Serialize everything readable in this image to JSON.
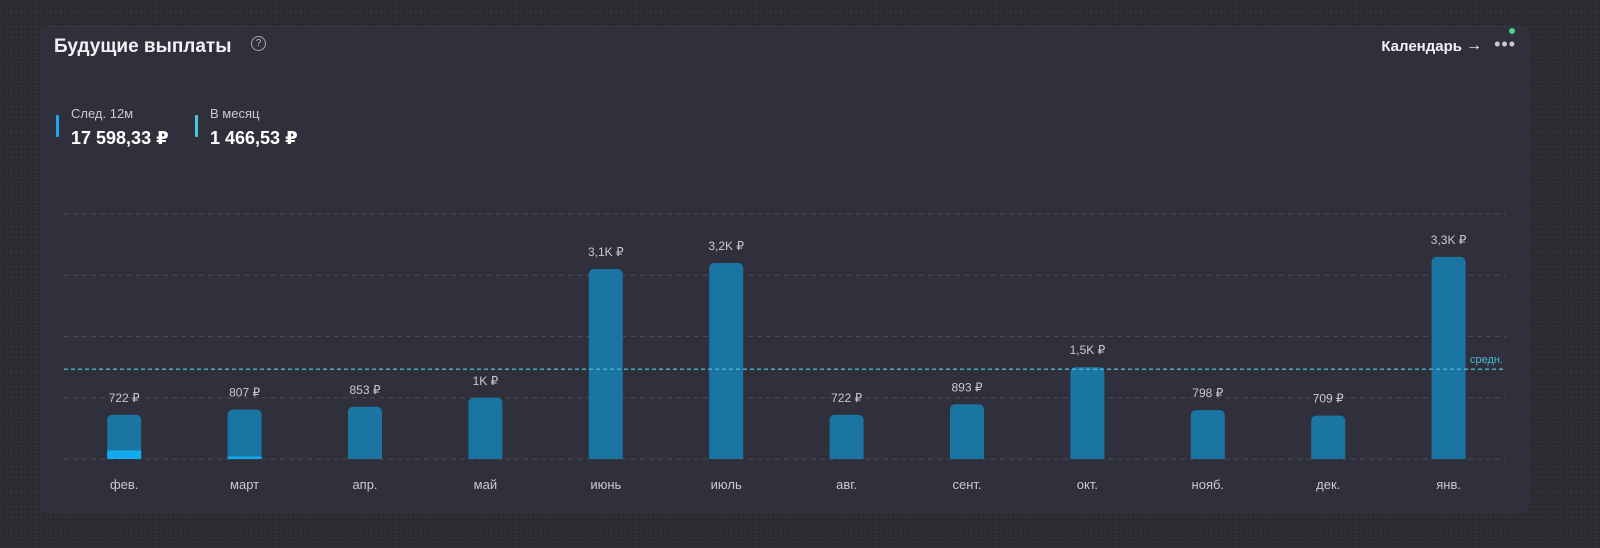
{
  "widget": {
    "title": "Будущие выплаты",
    "help_icon": "?",
    "calendar_link": "Календарь",
    "arrow_icon": "→",
    "more_icon": "•••"
  },
  "stats": [
    {
      "label": "След. 12м",
      "value": "17 598,33 ₽",
      "color": "#1fa9f2"
    },
    {
      "label": "В месяц",
      "value": "1 466,53 ₽",
      "color": "#4fc3dc"
    }
  ],
  "colors": {
    "bar": "#1b75a3",
    "bar_highlight": "#14aaf0",
    "average_line": "#4cb8d8",
    "grid": "#4a4a55",
    "status_dot": "#4cd08a"
  },
  "chart_data": {
    "type": "bar",
    "categories": [
      "фев.",
      "март",
      "апр.",
      "май",
      "июнь",
      "июль",
      "авг.",
      "сент.",
      "окт.",
      "нояб.",
      "дек.",
      "янв."
    ],
    "values": [
      722,
      807,
      853,
      1000,
      3100,
      3200,
      722,
      893,
      1500,
      798,
      709,
      3300
    ],
    "highlight_values": [
      140,
      40,
      0,
      0,
      0,
      0,
      0,
      0,
      0,
      0,
      0,
      0
    ],
    "value_labels": [
      "722 ₽",
      "807 ₽",
      "853 ₽",
      "1K ₽",
      "3,1K ₽",
      "3,2K ₽",
      "722 ₽",
      "893 ₽",
      "1,5K ₽",
      "798 ₽",
      "709 ₽",
      "3,3K ₽"
    ],
    "average": 1466.53,
    "average_label": "средн.",
    "ylim": [
      0,
      4000
    ],
    "grid": true
  }
}
